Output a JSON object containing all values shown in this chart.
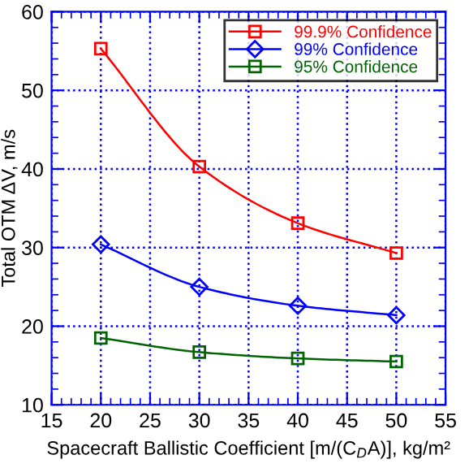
{
  "chart_data": {
    "type": "line",
    "xlabel": "Spacecraft Ballistic Coefficient [m/(C$_{D}$A)], kg/m²",
    "ylabel": "Total OTM ΔV, m/s",
    "x": [
      20,
      30,
      40,
      50
    ],
    "series": [
      {
        "name": "99.9% Confidence",
        "color": "#ff0000",
        "marker": "square",
        "values": [
          55.3,
          40.3,
          33.1,
          29.3
        ]
      },
      {
        "name": "99% Confidence",
        "color": "#0000ff",
        "marker": "diamond",
        "values": [
          30.4,
          25.0,
          22.6,
          21.4
        ]
      },
      {
        "name": "95% Confidence",
        "color": "#006400",
        "marker": "square",
        "values": [
          18.5,
          16.7,
          15.9,
          15.5
        ]
      }
    ],
    "xlim": [
      15,
      55
    ],
    "xticks": [
      15,
      20,
      25,
      30,
      35,
      40,
      45,
      50,
      55
    ],
    "ylim": [
      10,
      60
    ],
    "yticks": [
      10,
      20,
      30,
      40,
      50,
      60
    ],
    "grid": true,
    "legend": "top right",
    "line_style": "solid"
  }
}
